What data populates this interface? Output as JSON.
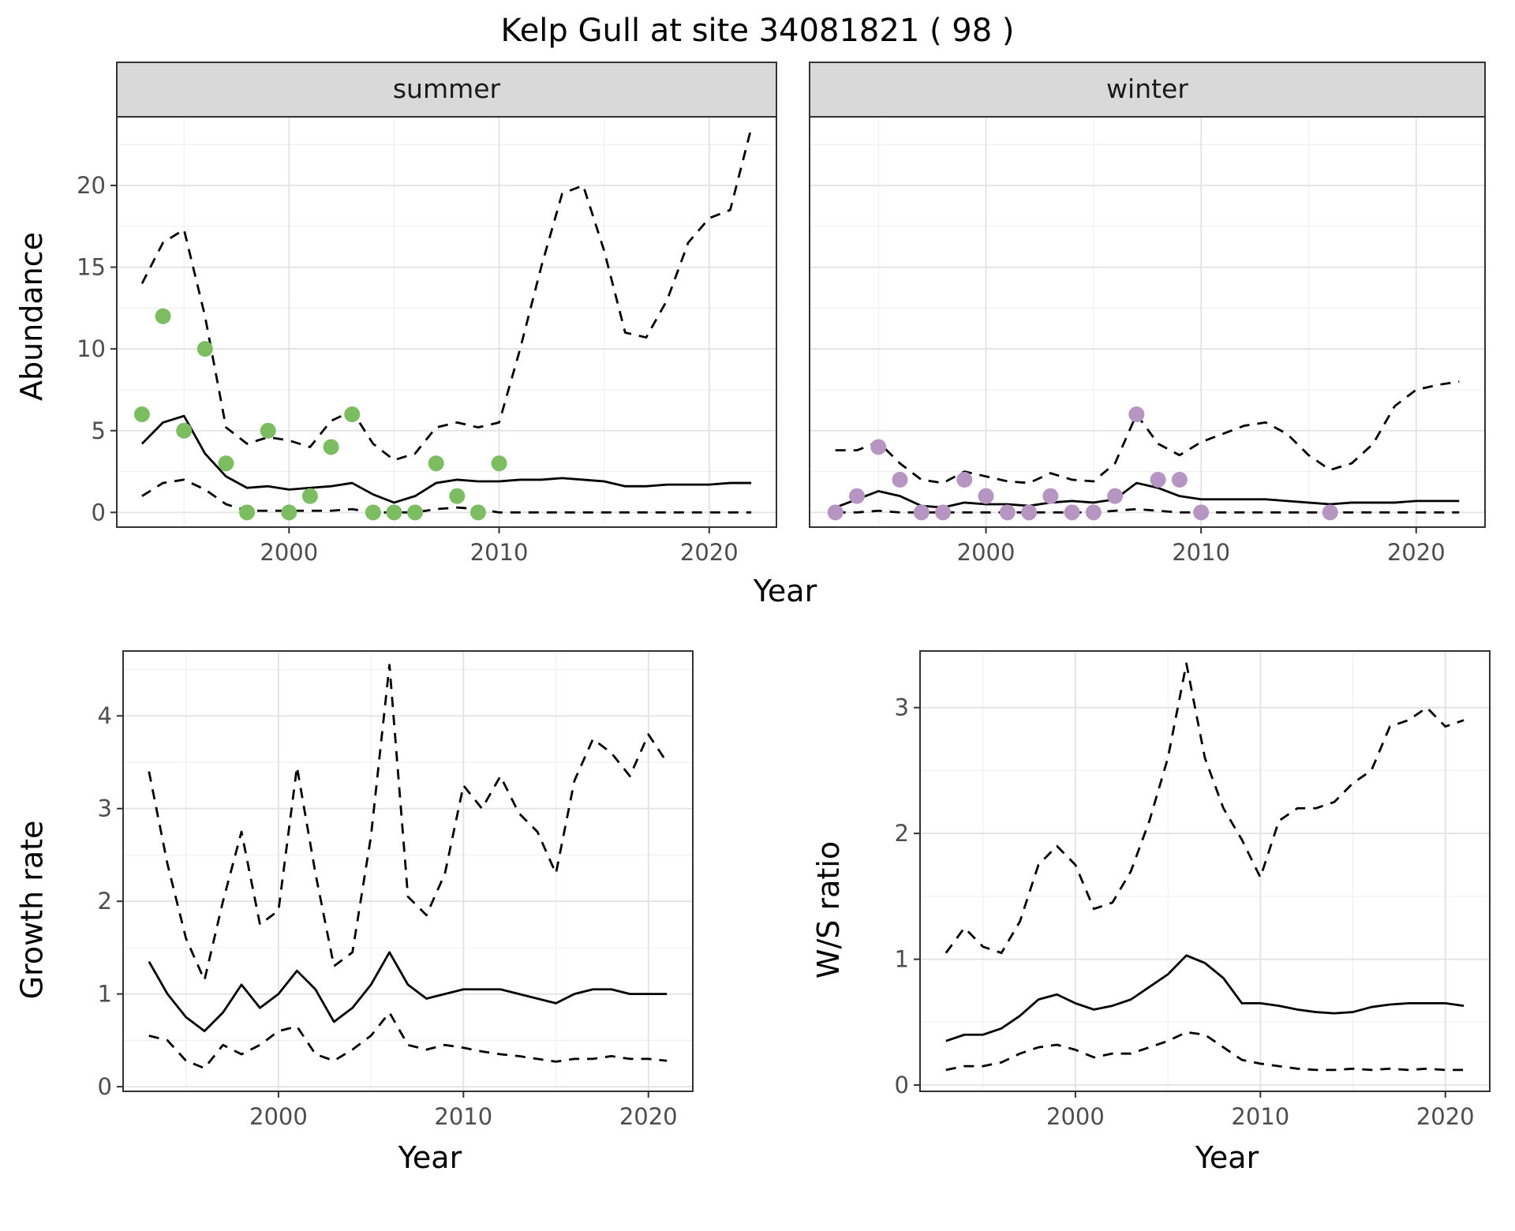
{
  "page": {
    "title": "Kelp Gull at site 34081821 ( 98 )"
  },
  "axes": {
    "abundance_label": "Abundance",
    "year_label": "Year",
    "growth_label": "Growth rate",
    "ws_label": "W/S ratio"
  },
  "colors": {
    "summer_point": "#7CBD62",
    "winter_point": "#B795C3",
    "line": "#000000",
    "strip_bg": "#D9D9D9",
    "grid_major": "#E2E2E2",
    "grid_minor": "#F0F0F0",
    "panel_border": "#333333"
  },
  "chart_data": [
    {
      "id": "abundance-summer",
      "type": "line",
      "facet": "summer",
      "title": "Kelp Gull at site 34081821 ( 98 )",
      "xlabel": "Year",
      "ylabel": "Abundance",
      "xlim": [
        1991.8,
        2023.2
      ],
      "ylim": [
        -0.9,
        24.2
      ],
      "xticks": [
        2000,
        2010,
        2020
      ],
      "yticks": [
        0,
        5,
        10,
        15,
        20
      ],
      "x": [
        1993,
        1994,
        1995,
        1996,
        1997,
        1998,
        1999,
        2000,
        2001,
        2002,
        2003,
        2004,
        2005,
        2006,
        2007,
        2008,
        2009,
        2010,
        2011,
        2012,
        2013,
        2014,
        2015,
        2016,
        2017,
        2018,
        2019,
        2020,
        2021,
        2022
      ],
      "series": [
        {
          "name": "mean",
          "style": "solid",
          "values": [
            4.2,
            5.5,
            5.9,
            3.6,
            2.2,
            1.5,
            1.6,
            1.4,
            1.5,
            1.6,
            1.8,
            1.1,
            0.6,
            1.0,
            1.8,
            2.0,
            1.9,
            1.9,
            2.0,
            2.0,
            2.1,
            2.0,
            1.9,
            1.6,
            1.6,
            1.7,
            1.7,
            1.7,
            1.8,
            1.8
          ]
        },
        {
          "name": "upper-ci",
          "style": "dashed",
          "values": [
            14.0,
            16.5,
            17.3,
            12.0,
            5.2,
            4.2,
            4.6,
            4.4,
            4.0,
            5.6,
            6.2,
            4.2,
            3.2,
            3.6,
            5.2,
            5.5,
            5.2,
            5.5,
            10.0,
            15.0,
            19.5,
            20.0,
            16.0,
            11.0,
            10.7,
            13.0,
            16.5,
            18.0,
            18.5,
            23.5
          ]
        },
        {
          "name": "lower-ci",
          "style": "dashed",
          "values": [
            1.0,
            1.8,
            2.0,
            1.4,
            0.5,
            0.1,
            0.1,
            0.1,
            0.1,
            0.1,
            0.2,
            0.0,
            0.0,
            0.0,
            0.2,
            0.3,
            0.2,
            0.0,
            0.0,
            0.0,
            0.0,
            0.0,
            0.0,
            0.0,
            0.0,
            0.0,
            0.0,
            0.0,
            0.0,
            0.0
          ]
        }
      ],
      "points": {
        "name": "summer-observations",
        "color": "#7CBD62",
        "x": [
          1993,
          1994,
          1995,
          1996,
          1997,
          1998,
          1999,
          2000,
          2001,
          2002,
          2003,
          2004,
          2005,
          2006,
          2007,
          2008,
          2009,
          2010
        ],
        "y": [
          6,
          12,
          5,
          10,
          3,
          0,
          5,
          0,
          1,
          4,
          6,
          0,
          0,
          0,
          3,
          1,
          0,
          3
        ]
      }
    },
    {
      "id": "abundance-winter",
      "type": "line",
      "facet": "winter",
      "title": "Kelp Gull at site 34081821 ( 98 )",
      "xlabel": "Year",
      "ylabel": "Abundance",
      "xlim": [
        1991.8,
        2023.2
      ],
      "ylim": [
        -0.9,
        24.2
      ],
      "xticks": [
        2000,
        2010,
        2020
      ],
      "yticks": [
        0,
        5,
        10,
        15,
        20
      ],
      "x": [
        1993,
        1994,
        1995,
        1996,
        1997,
        1998,
        1999,
        2000,
        2001,
        2002,
        2003,
        2004,
        2005,
        2006,
        2007,
        2008,
        2009,
        2010,
        2011,
        2012,
        2013,
        2014,
        2015,
        2016,
        2017,
        2018,
        2019,
        2020,
        2021,
        2022
      ],
      "series": [
        {
          "name": "mean",
          "style": "solid",
          "values": [
            0.3,
            0.8,
            1.3,
            1.0,
            0.4,
            0.3,
            0.6,
            0.5,
            0.5,
            0.4,
            0.6,
            0.7,
            0.6,
            0.8,
            1.8,
            1.5,
            1.0,
            0.8,
            0.8,
            0.8,
            0.8,
            0.7,
            0.6,
            0.5,
            0.6,
            0.6,
            0.6,
            0.7,
            0.7,
            0.7
          ]
        },
        {
          "name": "upper-ci",
          "style": "dashed",
          "values": [
            3.8,
            3.8,
            4.3,
            3.0,
            2.0,
            1.8,
            2.5,
            2.2,
            1.9,
            1.8,
            2.4,
            2.0,
            1.9,
            3.0,
            6.0,
            4.2,
            3.5,
            4.3,
            4.8,
            5.3,
            5.5,
            4.8,
            3.5,
            2.6,
            3.0,
            4.2,
            6.5,
            7.5,
            7.8,
            8.0
          ]
        },
        {
          "name": "lower-ci",
          "style": "dashed",
          "values": [
            0.0,
            0.0,
            0.1,
            0.0,
            0.0,
            0.0,
            0.0,
            0.0,
            0.0,
            0.0,
            0.0,
            0.0,
            0.0,
            0.1,
            0.2,
            0.1,
            0.0,
            0.0,
            0.0,
            0.0,
            0.0,
            0.0,
            0.0,
            0.0,
            0.0,
            0.0,
            0.0,
            0.0,
            0.0,
            0.0
          ]
        }
      ],
      "points": {
        "name": "winter-observations",
        "color": "#B795C3",
        "x": [
          1993,
          1994,
          1995,
          1996,
          1997,
          1998,
          1999,
          2000,
          2001,
          2002,
          2003,
          2004,
          2005,
          2006,
          2007,
          2008,
          2009,
          2010,
          2016
        ],
        "y": [
          0,
          1,
          4,
          2,
          0,
          0,
          2,
          1,
          0,
          0,
          1,
          0,
          0,
          1,
          6,
          2,
          2,
          0,
          0
        ]
      }
    },
    {
      "id": "growth-rate",
      "type": "line",
      "facet": null,
      "title": "",
      "xlabel": "Year",
      "ylabel": "Growth rate",
      "xlim": [
        1991.6,
        2022.4
      ],
      "ylim": [
        -0.05,
        4.7
      ],
      "xticks": [
        2000,
        2010,
        2020
      ],
      "yticks": [
        0,
        1,
        2,
        3,
        4
      ],
      "x": [
        1993,
        1994,
        1995,
        1996,
        1997,
        1998,
        1999,
        2000,
        2001,
        2002,
        2003,
        2004,
        2005,
        2006,
        2007,
        2008,
        2009,
        2010,
        2011,
        2012,
        2013,
        2014,
        2015,
        2016,
        2017,
        2018,
        2019,
        2020,
        2021
      ],
      "series": [
        {
          "name": "mean",
          "style": "solid",
          "values": [
            1.35,
            1.0,
            0.75,
            0.6,
            0.8,
            1.1,
            0.85,
            1.0,
            1.25,
            1.05,
            0.7,
            0.85,
            1.1,
            1.45,
            1.1,
            0.95,
            1.0,
            1.05,
            1.05,
            1.05,
            1.0,
            0.95,
            0.9,
            1.0,
            1.05,
            1.05,
            1.0,
            1.0,
            1.0
          ]
        },
        {
          "name": "upper-ci",
          "style": "dashed",
          "values": [
            3.4,
            2.4,
            1.6,
            1.15,
            2.0,
            2.75,
            1.75,
            1.9,
            3.45,
            2.3,
            1.3,
            1.45,
            2.7,
            4.55,
            2.05,
            1.85,
            2.3,
            3.25,
            3.0,
            3.35,
            2.95,
            2.75,
            2.3,
            3.3,
            3.75,
            3.6,
            3.35,
            3.8,
            3.5
          ]
        },
        {
          "name": "lower-ci",
          "style": "dashed",
          "values": [
            0.55,
            0.5,
            0.28,
            0.2,
            0.45,
            0.35,
            0.45,
            0.6,
            0.65,
            0.35,
            0.28,
            0.4,
            0.55,
            0.8,
            0.45,
            0.4,
            0.45,
            0.42,
            0.38,
            0.35,
            0.33,
            0.3,
            0.27,
            0.3,
            0.3,
            0.33,
            0.3,
            0.3,
            0.28
          ]
        }
      ],
      "points": null
    },
    {
      "id": "ws-ratio",
      "type": "line",
      "facet": null,
      "title": "",
      "xlabel": "Year",
      "ylabel": "W/S ratio",
      "xlim": [
        1991.6,
        2022.4
      ],
      "ylim": [
        -0.05,
        3.45
      ],
      "xticks": [
        2000,
        2010,
        2020
      ],
      "yticks": [
        0,
        1,
        2,
        3
      ],
      "x": [
        1993,
        1994,
        1995,
        1996,
        1997,
        1998,
        1999,
        2000,
        2001,
        2002,
        2003,
        2004,
        2005,
        2006,
        2007,
        2008,
        2009,
        2010,
        2011,
        2012,
        2013,
        2014,
        2015,
        2016,
        2017,
        2018,
        2019,
        2020,
        2021
      ],
      "series": [
        {
          "name": "mean",
          "style": "solid",
          "values": [
            0.35,
            0.4,
            0.4,
            0.45,
            0.55,
            0.68,
            0.72,
            0.65,
            0.6,
            0.63,
            0.68,
            0.78,
            0.88,
            1.03,
            0.97,
            0.85,
            0.65,
            0.65,
            0.63,
            0.6,
            0.58,
            0.57,
            0.58,
            0.62,
            0.64,
            0.65,
            0.65,
            0.65,
            0.63
          ]
        },
        {
          "name": "upper-ci",
          "style": "dashed",
          "values": [
            1.05,
            1.25,
            1.1,
            1.05,
            1.3,
            1.75,
            1.9,
            1.75,
            1.4,
            1.45,
            1.7,
            2.1,
            2.6,
            3.35,
            2.6,
            2.2,
            1.95,
            1.65,
            2.1,
            2.2,
            2.2,
            2.25,
            2.4,
            2.5,
            2.85,
            2.9,
            3.0,
            2.85,
            2.9
          ]
        },
        {
          "name": "lower-ci",
          "style": "dashed",
          "values": [
            0.12,
            0.15,
            0.15,
            0.18,
            0.25,
            0.3,
            0.32,
            0.28,
            0.22,
            0.25,
            0.25,
            0.3,
            0.35,
            0.42,
            0.4,
            0.3,
            0.2,
            0.17,
            0.15,
            0.13,
            0.12,
            0.12,
            0.13,
            0.12,
            0.13,
            0.12,
            0.13,
            0.12,
            0.12
          ]
        }
      ],
      "points": null
    }
  ]
}
